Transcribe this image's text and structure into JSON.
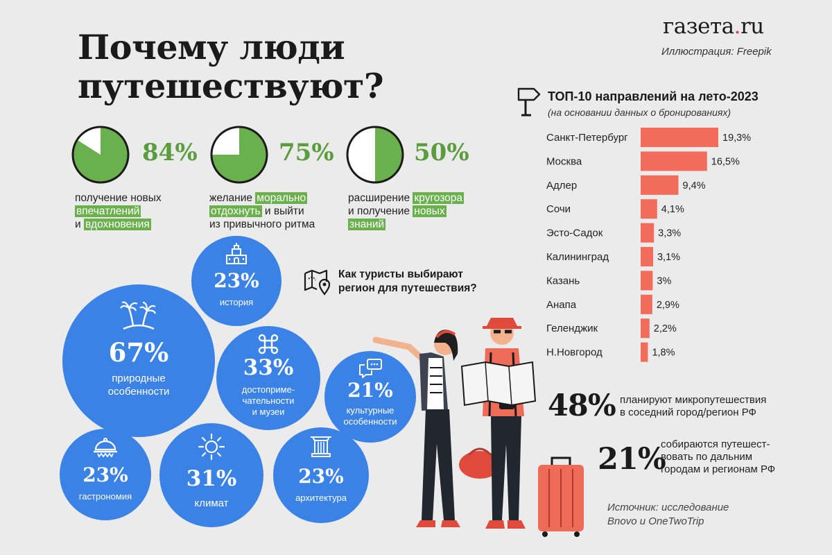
{
  "header": {
    "title": "Почему люди\nпутешествуют?",
    "logo_main": "газета",
    "logo_dot": ".",
    "logo_tail": "ru",
    "illustration_credit": "Иллюстрация: Freepik"
  },
  "reasons": [
    {
      "value": 84,
      "label": "84%",
      "line1": "получение новых",
      "hl1": "впечатлений",
      "pre2": "и ",
      "hl2": "вдохновения"
    },
    {
      "value": 75,
      "label": "75%",
      "pre1": "желание ",
      "hl1": "морально",
      "hl2": "отдохнуть",
      "post2": " и выйти",
      "line3": "из привычного ритма"
    },
    {
      "value": 50,
      "label": "50%",
      "pre1": "расширение ",
      "hl1": "кругозора",
      "pre2": "и получение ",
      "hl2": "новых",
      "hl3": "знаний"
    }
  ],
  "region_question": "Как туристы выбирают\nрегион для путешествия?",
  "bubbles": [
    {
      "value": 67,
      "label": "67%",
      "text": "природные\nособенности",
      "icon": "palm-island-icon"
    },
    {
      "value": 23,
      "label": "23%",
      "text": "история",
      "icon": "castle-icon"
    },
    {
      "value": 33,
      "label": "33%",
      "text": "достоприме-\nчательности\nи музеи",
      "icon": "command-icon"
    },
    {
      "value": 21,
      "label": "21%",
      "text": "культурные\nособенности",
      "icon": "chat-icon"
    },
    {
      "value": 23,
      "label": "23%",
      "text": "гастрономия",
      "icon": "cloche-icon"
    },
    {
      "value": 31,
      "label": "31%",
      "text": "климат",
      "icon": "sun-icon"
    },
    {
      "value": 23,
      "label": "23%",
      "text": "архитектура",
      "icon": "column-icon"
    }
  ],
  "top10": {
    "heading": "ТОП-10 направлений на лето-2023",
    "subheading": "(на основании данных о бронированиях)"
  },
  "chart_data": [
    {
      "type": "bar",
      "orientation": "horizontal",
      "title": "ТОП-10 направлений на лето-2023",
      "subtitle": "(на основании данных о бронированиях)",
      "categories": [
        "Санкт-Петербург",
        "Москва",
        "Адлер",
        "Сочи",
        "Эсто-Садок",
        "Калининград",
        "Казань",
        "Анапа",
        "Геленджик",
        "Н.Новгород"
      ],
      "values": [
        19.3,
        16.5,
        9.4,
        4.1,
        3.3,
        3.1,
        3.0,
        2.9,
        2.2,
        1.8
      ],
      "value_labels": [
        "19,3%",
        "16,5%",
        "9,4%",
        "4,1%",
        "3,3%",
        "3,1%",
        "3%",
        "2,9%",
        "2,2%",
        "1,8%"
      ],
      "unit": "%",
      "color": "#f26b5b"
    },
    {
      "type": "pie",
      "title": "Почему люди путешествуют?",
      "categories": [
        "получение новых впечатлений и вдохновения",
        "желание морально отдохнуть и выйти из привычного ритма",
        "расширение кругозора и получение новых знаний"
      ],
      "values": [
        84,
        75,
        50
      ],
      "unit": "%"
    },
    {
      "type": "bubble",
      "title": "Как туристы выбирают регион для путешествия?",
      "categories": [
        "природные особенности",
        "история",
        "достопримечательности и музеи",
        "культурные особенности",
        "гастрономия",
        "климат",
        "архитектура"
      ],
      "values": [
        67,
        23,
        33,
        21,
        23,
        31,
        23
      ],
      "unit": "%"
    }
  ],
  "stats": [
    {
      "value": "48%",
      "text": "планируют микропутешествия\nв соседний город/регион РФ"
    },
    {
      "value": "21%",
      "text": "собираются путешест-\nвовать по дальним\nгородам и регионам РФ"
    }
  ],
  "source": "Источник: исследование\nBnovo и OneTwoTrip",
  "colors": {
    "green": "#5a9d3c",
    "highlight": "#6ab04c",
    "blue": "#3b82e6",
    "bar": "#f26b5b",
    "background": "#ebebeb"
  }
}
